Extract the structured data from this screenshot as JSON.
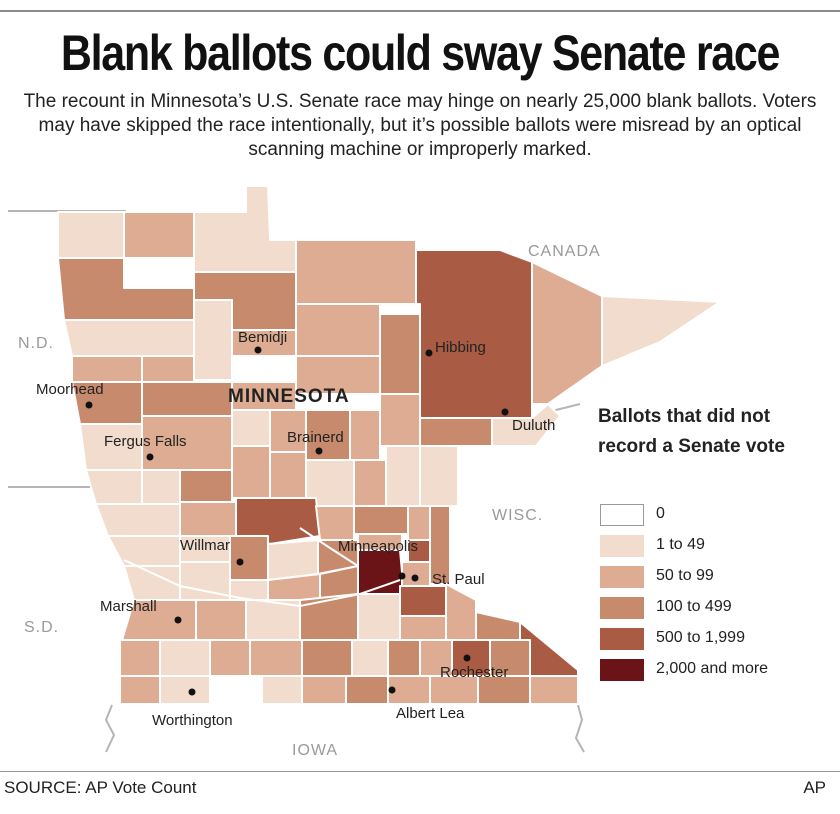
{
  "title": "Blank ballots could sway Senate race",
  "subtitle": "The recount in Minnesota’s U.S. Senate race may hinge on nearly 25,000 blank ballots. Voters may have skipped the race intentionally, but it’s possible ballots were misread by an optical scanning machine or improperly marked.",
  "map": {
    "neighbors": {
      "canada": "CANADA",
      "nd": "N.D.",
      "sd": "S.D.",
      "wisc": "WISC.",
      "iowa": "IOWA"
    },
    "state_label": "MINNESOTA",
    "cities": [
      {
        "id": "bemidji",
        "name": "Bemidji"
      },
      {
        "id": "hibbing",
        "name": "Hibbing"
      },
      {
        "id": "moorhead",
        "name": "Moorhead"
      },
      {
        "id": "duluth",
        "name": "Duluth"
      },
      {
        "id": "brainerd",
        "name": "Brainerd"
      },
      {
        "id": "fergus",
        "name": "Fergus Falls"
      },
      {
        "id": "willmar",
        "name": "Willmar"
      },
      {
        "id": "minneapolis",
        "name": "Minneapolis"
      },
      {
        "id": "stpaul",
        "name": "St. Paul"
      },
      {
        "id": "marshall",
        "name": "Marshall"
      },
      {
        "id": "rochester",
        "name": "Rochester"
      },
      {
        "id": "worthington",
        "name": "Worthington"
      },
      {
        "id": "albertlea",
        "name": "Albert Lea"
      }
    ],
    "class_colors": [
      "#ffffff",
      "#f1dccd",
      "#ddac92",
      "#c88a6d",
      "#a95b43",
      "#6b1417"
    ]
  },
  "legend": {
    "title": "Ballots that did not record a Senate vote",
    "items": [
      {
        "label": "0",
        "color": "#ffffff"
      },
      {
        "label": "1 to 49",
        "color": "#f1dccd"
      },
      {
        "label": "50 to 99",
        "color": "#ddac92"
      },
      {
        "label": "100 to 499",
        "color": "#c88a6d"
      },
      {
        "label": "500 to 1,999",
        "color": "#a95b43"
      },
      {
        "label": "2,000 and more",
        "color": "#6b1417"
      }
    ]
  },
  "source": "SOURCE: AP Vote Count",
  "credit": "AP"
}
